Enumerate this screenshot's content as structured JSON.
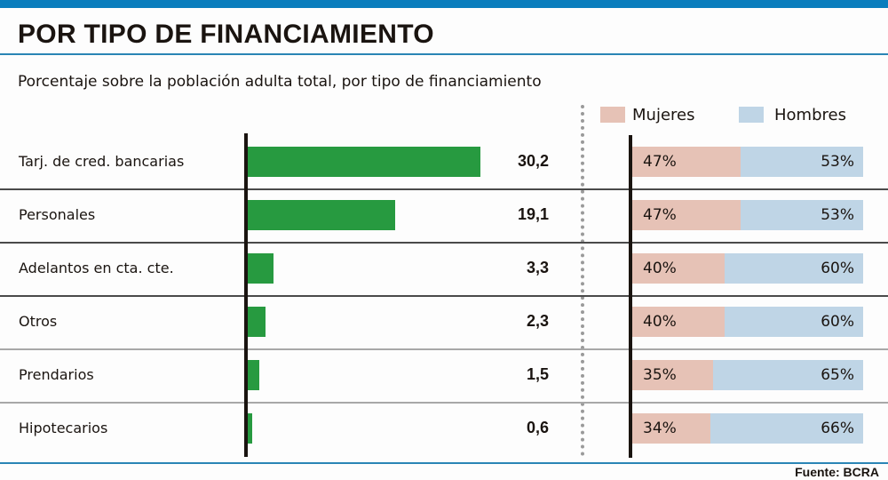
{
  "header": {
    "title": "POR TIPO DE FINANCIAMIENTO",
    "subtitle": "Porcentaje sobre la población adulta total, por tipo de financiamiento"
  },
  "legend": {
    "mujeres": "Mujeres",
    "hombres": "Hombres"
  },
  "colors": {
    "accent_blue": "#0a7dbd",
    "bar_green": "#279a40",
    "mujeres": "#e6c2b6",
    "hombres": "#bfd5e6"
  },
  "source": "Fuente: BCRA",
  "chart_data": [
    {
      "type": "bar",
      "orientation": "horizontal",
      "title": "Porcentaje sobre la población adulta total, por tipo de financiamiento",
      "categories": [
        "Tarj. de cred. bancarias",
        "Personales",
        "Adelantos en cta. cte.",
        "Otros",
        "Prendarios",
        "Hipotecarios"
      ],
      "values": [
        30.2,
        19.1,
        3.3,
        2.3,
        1.5,
        0.6
      ],
      "value_labels": [
        "30,2",
        "19,1",
        "3,3",
        "2,3",
        "1,5",
        "0,6"
      ],
      "xlim": [
        0,
        30.2
      ]
    },
    {
      "type": "bar",
      "orientation": "horizontal",
      "stacked": true,
      "categories": [
        "Tarj. de cred. bancarias",
        "Personales",
        "Adelantos en cta. cte.",
        "Otros",
        "Prendarios",
        "Hipotecarios"
      ],
      "series": [
        {
          "name": "Mujeres",
          "values": [
            47,
            47,
            40,
            40,
            35,
            34
          ],
          "labels": [
            "47%",
            "47%",
            "40%",
            "40%",
            "35%",
            "34%"
          ]
        },
        {
          "name": "Hombres",
          "values": [
            53,
            53,
            60,
            60,
            65,
            66
          ],
          "labels": [
            "53%",
            "53%",
            "60%",
            "60%",
            "65%",
            "66%"
          ]
        }
      ],
      "legend": "top-right",
      "xlim": [
        0,
        100
      ]
    }
  ]
}
